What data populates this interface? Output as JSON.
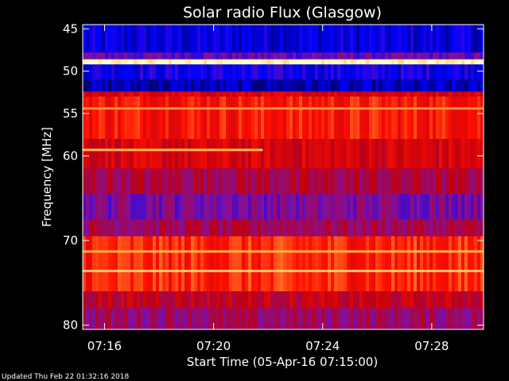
{
  "footer": {
    "updated": "Updated Thu Feb 22 01:32:16 2018"
  },
  "chart_data": {
    "type": "heatmap",
    "title": "Solar radio Flux (Glasgow)",
    "xlabel": "Start Time (05-Apr-16 07:15:00)",
    "ylabel": "Frequency [MHz]",
    "x_ticks": [
      {
        "minute": 16,
        "label": "07:16"
      },
      {
        "minute": 20,
        "label": "07:20"
      },
      {
        "minute": 24,
        "label": "07:24"
      },
      {
        "minute": 28,
        "label": "07:28"
      }
    ],
    "y_ticks": [
      {
        "value": 45,
        "label": "45"
      },
      {
        "value": 50,
        "label": "50"
      },
      {
        "value": 55,
        "label": "55"
      },
      {
        "value": 60,
        "label": "60"
      },
      {
        "value": 70,
        "label": "70"
      },
      {
        "value": 80,
        "label": "80"
      }
    ],
    "xlim_minutes": [
      15.2,
      29.9
    ],
    "ylim": [
      44.5,
      80.5
    ],
    "y_inverted": true,
    "colormap": [
      "#000060",
      "#0000ff",
      "#8010a0",
      "#c00010",
      "#ff1000",
      "#ffb040",
      "#ffffc0"
    ],
    "bands": [
      {
        "from": 44.5,
        "to": 47.8,
        "level": 0.14
      },
      {
        "from": 47.8,
        "to": 48.6,
        "level": 0.3
      },
      {
        "from": 48.6,
        "to": 49.2,
        "level": 1.0
      },
      {
        "from": 49.2,
        "to": 51.0,
        "level": 0.18
      },
      {
        "from": 51.0,
        "to": 52.4,
        "level": 0.08
      },
      {
        "from": 52.4,
        "to": 53.0,
        "level": 0.55
      },
      {
        "from": 53.0,
        "to": 58.0,
        "level": 0.66
      },
      {
        "from": 58.0,
        "to": 61.5,
        "level": 0.55
      },
      {
        "from": 61.5,
        "to": 64.5,
        "level": 0.44
      },
      {
        "from": 64.5,
        "to": 67.5,
        "level": 0.34
      },
      {
        "from": 67.5,
        "to": 69.5,
        "level": 0.42
      },
      {
        "from": 69.5,
        "to": 76.0,
        "level": 0.68
      },
      {
        "from": 76.0,
        "to": 78.0,
        "level": 0.5
      },
      {
        "from": 78.0,
        "to": 80.5,
        "level": 0.4
      }
    ],
    "lines": [
      {
        "freq": 54.4,
        "from_minute": 15.2,
        "to_minute": 29.9,
        "level": 0.8
      },
      {
        "freq": 59.3,
        "from_minute": 15.2,
        "to_minute": 21.8,
        "level": 0.86
      },
      {
        "freq": 71.3,
        "from_minute": 15.2,
        "to_minute": 29.9,
        "level": 0.84
      },
      {
        "freq": 73.6,
        "from_minute": 15.2,
        "to_minute": 29.9,
        "level": 0.88
      }
    ]
  }
}
